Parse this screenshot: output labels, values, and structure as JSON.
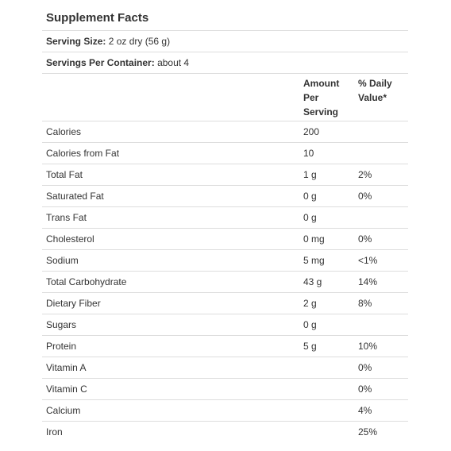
{
  "title": "Supplement Facts",
  "serving_size": {
    "label": "Serving Size:",
    "value": "2 oz dry (56 g)"
  },
  "servings_per_container": {
    "label": "Servings Per Container:",
    "value": "about 4"
  },
  "columns": {
    "amount": [
      "Amount",
      "Per",
      "Serving"
    ],
    "daily_value": [
      "% Daily",
      "Value*"
    ]
  },
  "rows": [
    {
      "name": "Calories",
      "amount": "200",
      "dv": ""
    },
    {
      "name": "Calories from Fat",
      "amount": "10",
      "dv": ""
    },
    {
      "name": "Total Fat",
      "amount": "1 g",
      "dv": "2%"
    },
    {
      "name": "Saturated Fat",
      "amount": "0 g",
      "dv": "0%"
    },
    {
      "name": "Trans Fat",
      "amount": "0 g",
      "dv": ""
    },
    {
      "name": "Cholesterol",
      "amount": "0 mg",
      "dv": "0%"
    },
    {
      "name": "Sodium",
      "amount": "5 mg",
      "dv": "<1%"
    },
    {
      "name": "Total Carbohydrate",
      "amount": "43 g",
      "dv": "14%"
    },
    {
      "name": "Dietary Fiber",
      "amount": "2 g",
      "dv": "8%"
    },
    {
      "name": "Sugars",
      "amount": "0 g",
      "dv": ""
    },
    {
      "name": "Protein",
      "amount": "5 g",
      "dv": "10%"
    },
    {
      "name": "Vitamin A",
      "amount": "",
      "dv": "0%"
    },
    {
      "name": "Vitamin C",
      "amount": "",
      "dv": "0%"
    },
    {
      "name": "Calcium",
      "amount": "",
      "dv": "4%"
    },
    {
      "name": "Iron",
      "amount": "",
      "dv": "25%"
    }
  ]
}
